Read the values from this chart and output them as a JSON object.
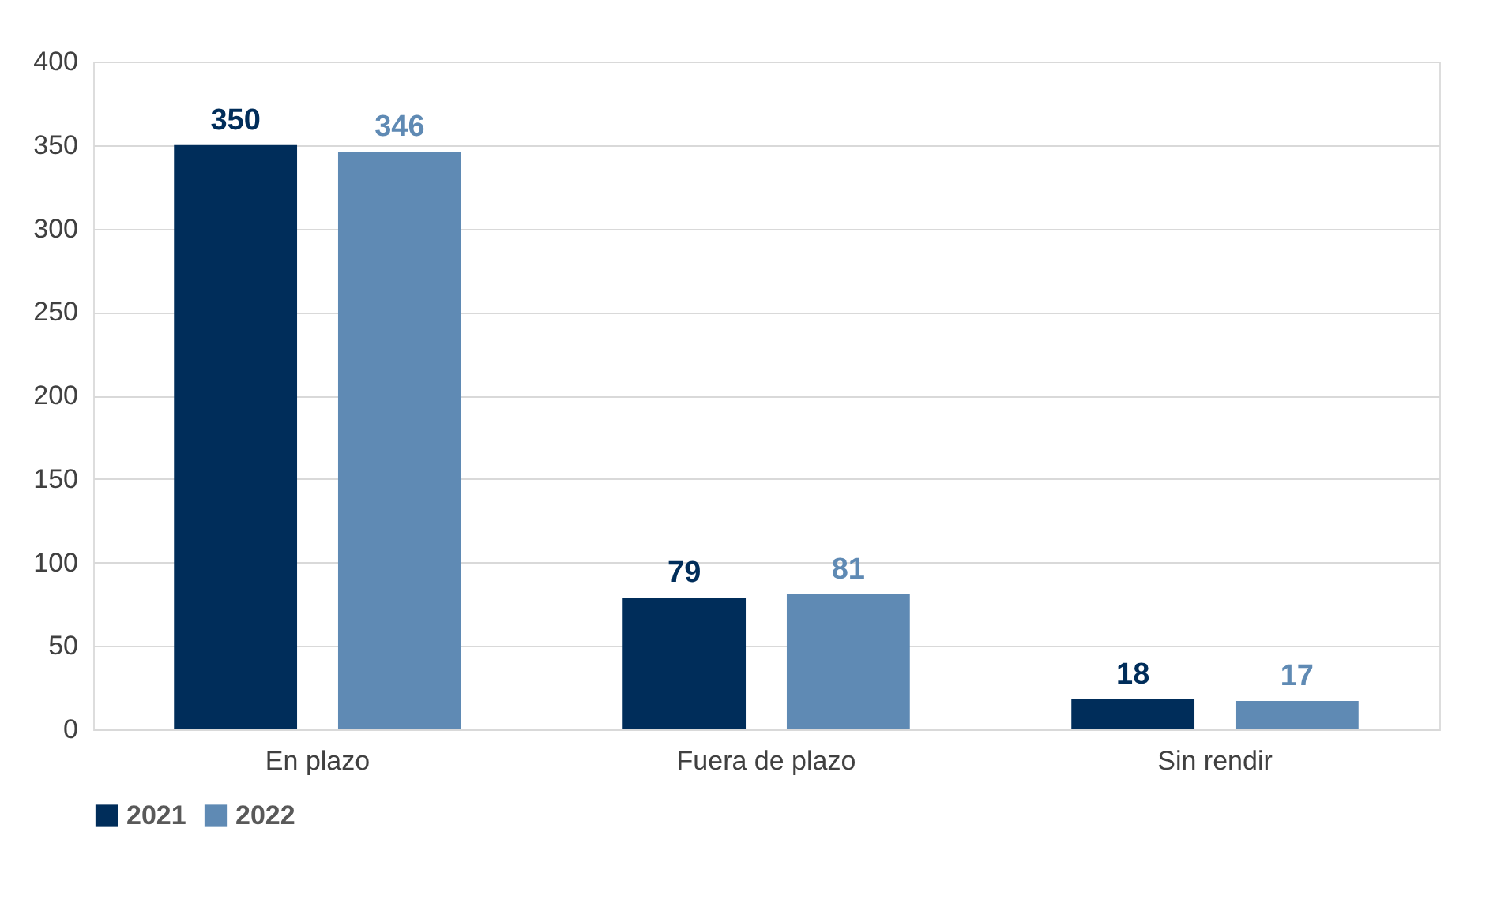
{
  "chart_data": {
    "type": "bar",
    "categories": [
      "En plazo",
      "Fuera de plazo",
      "Sin rendir"
    ],
    "series": [
      {
        "name": "2021",
        "color": "#002d5a",
        "values": [
          350,
          79,
          18
        ]
      },
      {
        "name": "2022",
        "color": "#5f8ab4",
        "values": [
          346,
          81,
          17
        ]
      }
    ],
    "ylim": [
      0,
      400
    ],
    "yticks": [
      0,
      50,
      100,
      150,
      200,
      250,
      300,
      350,
      400
    ],
    "grid": "y",
    "legend": "bottom",
    "data_labels": true
  }
}
